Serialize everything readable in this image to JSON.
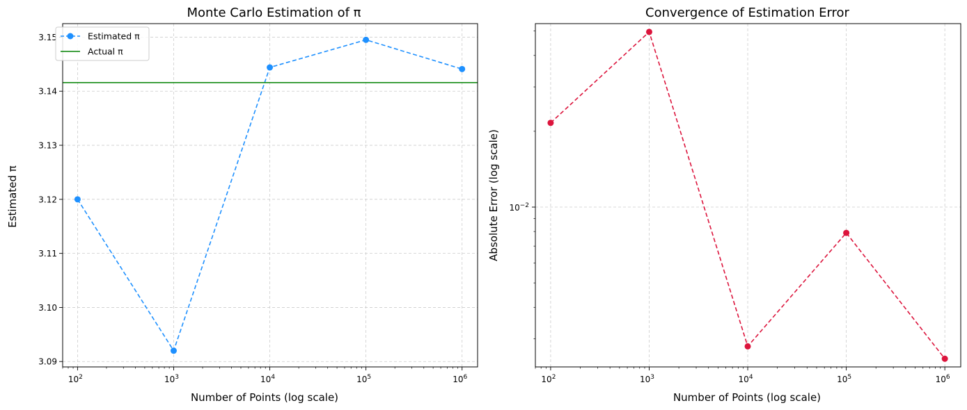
{
  "chart_data": [
    {
      "type": "line",
      "title": "Monte Carlo Estimation of π",
      "xlabel": "Number of Points (log scale)",
      "ylabel": "Estimated π",
      "x_scale": "log",
      "y_scale": "linear",
      "grid": true,
      "legend_position": "top-left",
      "xlim": [
        70,
        1450000
      ],
      "ylim": [
        3.089,
        3.1525
      ],
      "x_ticks": [
        {
          "value": 100,
          "base": "10",
          "exp": "2"
        },
        {
          "value": 1000,
          "base": "10",
          "exp": "3"
        },
        {
          "value": 10000,
          "base": "10",
          "exp": "4"
        },
        {
          "value": 100000,
          "base": "10",
          "exp": "5"
        },
        {
          "value": 1000000,
          "base": "10",
          "exp": "6"
        }
      ],
      "y_ticks": [
        {
          "value": 3.09,
          "label": "3.09"
        },
        {
          "value": 3.1,
          "label": "3.10"
        },
        {
          "value": 3.11,
          "label": "3.11"
        },
        {
          "value": 3.12,
          "label": "3.12"
        },
        {
          "value": 3.13,
          "label": "3.13"
        },
        {
          "value": 3.14,
          "label": "3.14"
        },
        {
          "value": 3.15,
          "label": "3.15"
        }
      ],
      "series": [
        {
          "name": "Estimated π",
          "style": "dashed-markers",
          "color": "#1e90ff",
          "x": [
            100,
            1000,
            10000,
            100000,
            1000000
          ],
          "y": [
            3.12,
            3.092,
            3.1444,
            3.1495,
            3.1441
          ]
        },
        {
          "name": "Actual π",
          "style": "solid-hline",
          "color": "#008000",
          "y": 3.14159
        }
      ]
    },
    {
      "type": "line",
      "title": "Convergence of Estimation Error",
      "xlabel": "Number of Points (log scale)",
      "ylabel": "Absolute Error (log scale)",
      "x_scale": "log",
      "y_scale": "log",
      "grid": true,
      "xlim": [
        70,
        1450000
      ],
      "ylim": [
        0.00232,
        0.0535
      ],
      "x_ticks": [
        {
          "value": 100,
          "base": "10",
          "exp": "2"
        },
        {
          "value": 1000,
          "base": "10",
          "exp": "3"
        },
        {
          "value": 10000,
          "base": "10",
          "exp": "4"
        },
        {
          "value": 100000,
          "base": "10",
          "exp": "5"
        },
        {
          "value": 1000000,
          "base": "10",
          "exp": "6"
        }
      ],
      "y_ticks": [
        {
          "value": 0.01,
          "base": "10",
          "exp": "−2"
        }
      ],
      "series": [
        {
          "name": "",
          "style": "dashed-markers",
          "color": "#dc143c",
          "x": [
            100,
            1000,
            10000,
            100000,
            1000000
          ],
          "y": [
            0.0216,
            0.0496,
            0.0028,
            0.0079,
            0.0025
          ]
        }
      ]
    }
  ]
}
